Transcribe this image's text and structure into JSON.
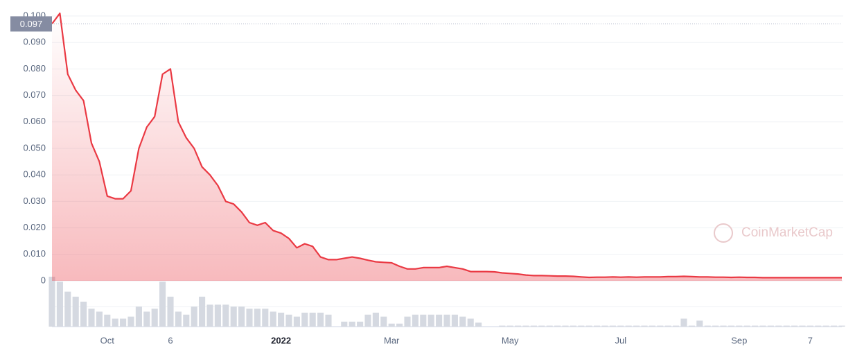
{
  "chart_data": {
    "type": "line",
    "watermark": "CoinMarketCap",
    "categories": [
      null,
      null,
      null,
      null,
      null,
      null,
      null,
      "Oct",
      null,
      null,
      null,
      null,
      null,
      null,
      null,
      "6",
      null,
      null,
      null,
      null,
      null,
      null,
      null,
      null,
      null,
      null,
      null,
      null,
      null,
      "2022",
      null,
      null,
      null,
      null,
      null,
      null,
      null,
      null,
      null,
      null,
      null,
      null,
      null,
      "Mar",
      null,
      null,
      null,
      null,
      null,
      null,
      null,
      null,
      null,
      null,
      null,
      null,
      null,
      null,
      "May",
      null,
      null,
      null,
      null,
      null,
      null,
      null,
      null,
      null,
      null,
      null,
      null,
      null,
      "Jul",
      null,
      null,
      null,
      null,
      null,
      null,
      null,
      null,
      null,
      null,
      null,
      null,
      null,
      null,
      "Sep",
      null,
      null,
      null,
      null,
      null,
      null,
      null,
      null,
      "7",
      null,
      null,
      null,
      null
    ],
    "values": [
      0.097,
      0.101,
      0.078,
      0.072,
      0.068,
      0.052,
      0.045,
      0.032,
      0.031,
      0.031,
      0.034,
      0.05,
      0.058,
      0.062,
      0.078,
      0.08,
      0.06,
      0.054,
      0.05,
      0.043,
      0.04,
      0.036,
      0.03,
      0.029,
      0.026,
      0.022,
      0.021,
      0.022,
      0.019,
      0.018,
      0.016,
      0.0125,
      0.014,
      0.013,
      0.009,
      0.008,
      0.008,
      0.0085,
      0.009,
      0.0085,
      0.0078,
      0.0072,
      0.007,
      0.0068,
      0.0055,
      0.0045,
      0.0045,
      0.005,
      0.005,
      0.005,
      0.0055,
      0.005,
      0.0045,
      0.0035,
      0.0035,
      0.0035,
      0.0034,
      0.003,
      0.0028,
      0.0026,
      0.0022,
      0.002,
      0.002,
      0.0019,
      0.0018,
      0.0018,
      0.0017,
      0.0015,
      0.0013,
      0.0014,
      0.0014,
      0.0015,
      0.0014,
      0.0015,
      0.0014,
      0.0015,
      0.0015,
      0.0015,
      0.0016,
      0.0016,
      0.0017,
      0.0016,
      0.0015,
      0.0015,
      0.0014,
      0.0014,
      0.0013,
      0.0014,
      0.0013,
      0.0013,
      0.0012,
      0.0012,
      0.0012,
      0.0012,
      0.0012,
      0.0012,
      0.0012,
      0.0012,
      0.0012,
      0.0012,
      0.0012
    ],
    "volume": [
      50,
      45,
      35,
      30,
      25,
      18,
      15,
      12,
      8,
      8,
      10,
      20,
      15,
      18,
      45,
      30,
      15,
      12,
      20,
      30,
      22,
      22,
      22,
      20,
      20,
      18,
      18,
      18,
      15,
      14,
      12,
      10,
      14,
      14,
      14,
      12,
      0,
      5,
      5,
      5,
      12,
      14,
      10,
      3,
      3,
      10,
      12,
      12,
      12,
      12,
      12,
      12,
      10,
      8,
      4,
      0,
      0,
      1,
      1,
      1,
      1,
      1,
      1,
      1,
      1,
      1,
      1,
      1,
      1,
      1,
      1,
      1,
      1,
      1,
      1,
      1,
      1,
      1,
      1,
      1,
      8,
      1,
      6,
      1,
      1,
      1,
      1,
      1,
      1,
      1,
      1,
      1,
      1,
      1,
      1,
      1,
      1,
      1,
      1,
      1,
      1
    ],
    "color": "#ea3943",
    "price_marker": {
      "value": 0.097,
      "label": "0.097"
    },
    "ylim": [
      0,
      0.1
    ],
    "yticks": [
      0,
      {
        "value": 0.01,
        "label": "0.010"
      },
      {
        "value": 0.02,
        "label": "0.020"
      },
      {
        "value": 0.03,
        "label": "0.030"
      },
      {
        "value": 0.04,
        "label": "0.040"
      },
      {
        "value": 0.05,
        "label": "0.050"
      },
      {
        "value": 0.06,
        "label": "0.060"
      },
      {
        "value": 0.07,
        "label": "0.070"
      },
      {
        "value": 0.08,
        "label": "0.080"
      },
      {
        "value": 0.09,
        "label": "0.090"
      },
      {
        "value": 0.1,
        "label": "0.100"
      }
    ],
    "grid": true
  }
}
